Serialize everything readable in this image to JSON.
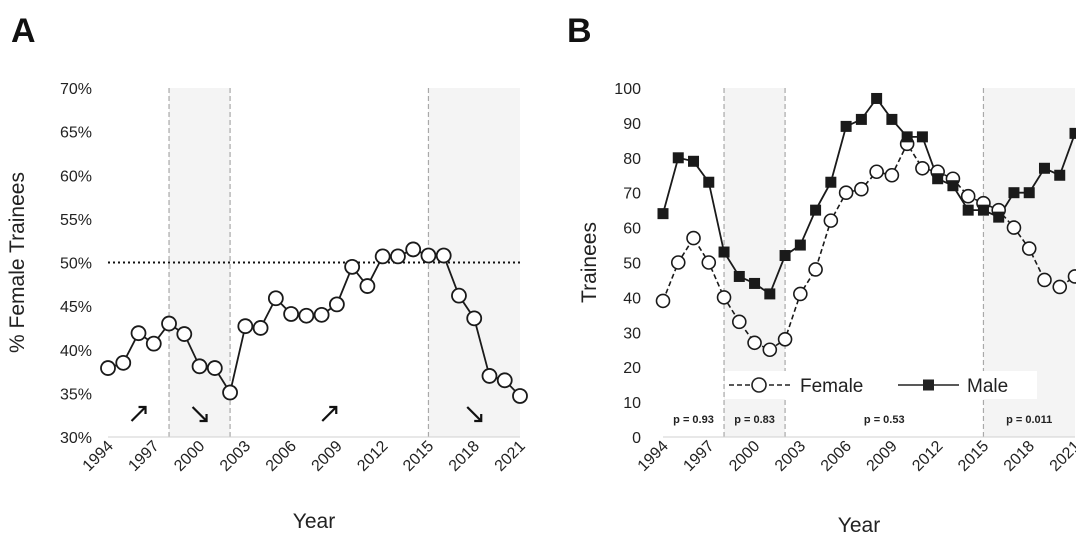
{
  "chart_data": [
    {
      "type": "line",
      "panel_label": "A",
      "xlabel": "Year",
      "ylabel": "% Female Trainees",
      "ylim": [
        30,
        70
      ],
      "yticks": [
        "30%",
        "35%",
        "40%",
        "45%",
        "50%",
        "55%",
        "60%",
        "65%",
        "70%"
      ],
      "xtick_labels": [
        "1994",
        "1997",
        "2000",
        "2003",
        "2006",
        "2009",
        "2012",
        "2015",
        "2018",
        "2021"
      ],
      "grid": false,
      "reference_line": 50,
      "shaded_ranges": [
        [
          1998,
          2002
        ],
        [
          2015,
          2021
        ]
      ],
      "dividers": [
        1998,
        2002,
        2015
      ],
      "trend_arrows": [
        {
          "x": 1996,
          "direction": "up"
        },
        {
          "x": 2000,
          "direction": "down"
        },
        {
          "x": 2008.5,
          "direction": "up"
        },
        {
          "x": 2018,
          "direction": "down"
        }
      ],
      "series": [
        {
          "x": [
            1994,
            1995,
            1996,
            1997,
            1998,
            1999,
            2000,
            2001,
            2002,
            2003,
            2004,
            2005,
            2006,
            2007,
            2008,
            2009,
            2010,
            2011,
            2012,
            2013,
            2014,
            2015,
            2016,
            2017,
            2018,
            2019,
            2020,
            2021
          ],
          "values": [
            37.9,
            38.5,
            41.9,
            40.7,
            43.0,
            41.8,
            38.1,
            37.9,
            35.1,
            42.7,
            42.5,
            45.9,
            44.1,
            43.9,
            44.0,
            45.2,
            49.5,
            47.3,
            50.7,
            50.7,
            51.5,
            50.8,
            50.8,
            46.2,
            43.6,
            37.0,
            36.5,
            34.7
          ]
        }
      ]
    },
    {
      "type": "line",
      "panel_label": "B",
      "xlabel": "Year",
      "ylabel": "Trainees",
      "ylim": [
        0,
        100
      ],
      "yticks": [
        "0",
        "10",
        "20",
        "30",
        "40",
        "50",
        "60",
        "70",
        "80",
        "90",
        "100"
      ],
      "xtick_labels": [
        "1994",
        "1997",
        "2000",
        "2003",
        "2006",
        "2009",
        "2012",
        "2015",
        "2018",
        "2021"
      ],
      "grid": false,
      "legend_position": "bottom",
      "shaded_ranges": [
        [
          1998,
          2002
        ],
        [
          2015,
          2021
        ]
      ],
      "dividers": [
        1998,
        2002,
        2015
      ],
      "p_values": [
        {
          "x": 1996,
          "label": "p = 0.93"
        },
        {
          "x": 2000,
          "label": "p = 0.83"
        },
        {
          "x": 2008.5,
          "label": "p = 0.53"
        },
        {
          "x": 2018,
          "label": "p = 0.011"
        }
      ],
      "series": [
        {
          "name": "Female",
          "style": "dashed-open-circle",
          "x": [
            1994,
            1995,
            1996,
            1997,
            1998,
            1999,
            2000,
            2001,
            2002,
            2003,
            2004,
            2005,
            2006,
            2007,
            2008,
            2009,
            2010,
            2011,
            2012,
            2013,
            2014,
            2015,
            2016,
            2017,
            2018,
            2019,
            2020,
            2021
          ],
          "values": [
            39,
            50,
            57,
            50,
            40,
            33,
            27,
            25,
            28,
            41,
            48,
            62,
            70,
            71,
            76,
            75,
            84,
            77,
            76,
            74,
            69,
            67,
            65,
            60,
            54,
            45,
            43,
            46
          ]
        },
        {
          "name": "Male",
          "style": "solid-filled-square",
          "x": [
            1994,
            1995,
            1996,
            1997,
            1998,
            1999,
            2000,
            2001,
            2002,
            2003,
            2004,
            2005,
            2006,
            2007,
            2008,
            2009,
            2010,
            2011,
            2012,
            2013,
            2014,
            2015,
            2016,
            2017,
            2018,
            2019,
            2020,
            2021
          ],
          "values": [
            64,
            80,
            79,
            73,
            53,
            46,
            44,
            41,
            52,
            55,
            65,
            73,
            89,
            91,
            97,
            91,
            86,
            86,
            74,
            72,
            65,
            65,
            63,
            70,
            70,
            77,
            75,
            87
          ]
        }
      ]
    }
  ]
}
